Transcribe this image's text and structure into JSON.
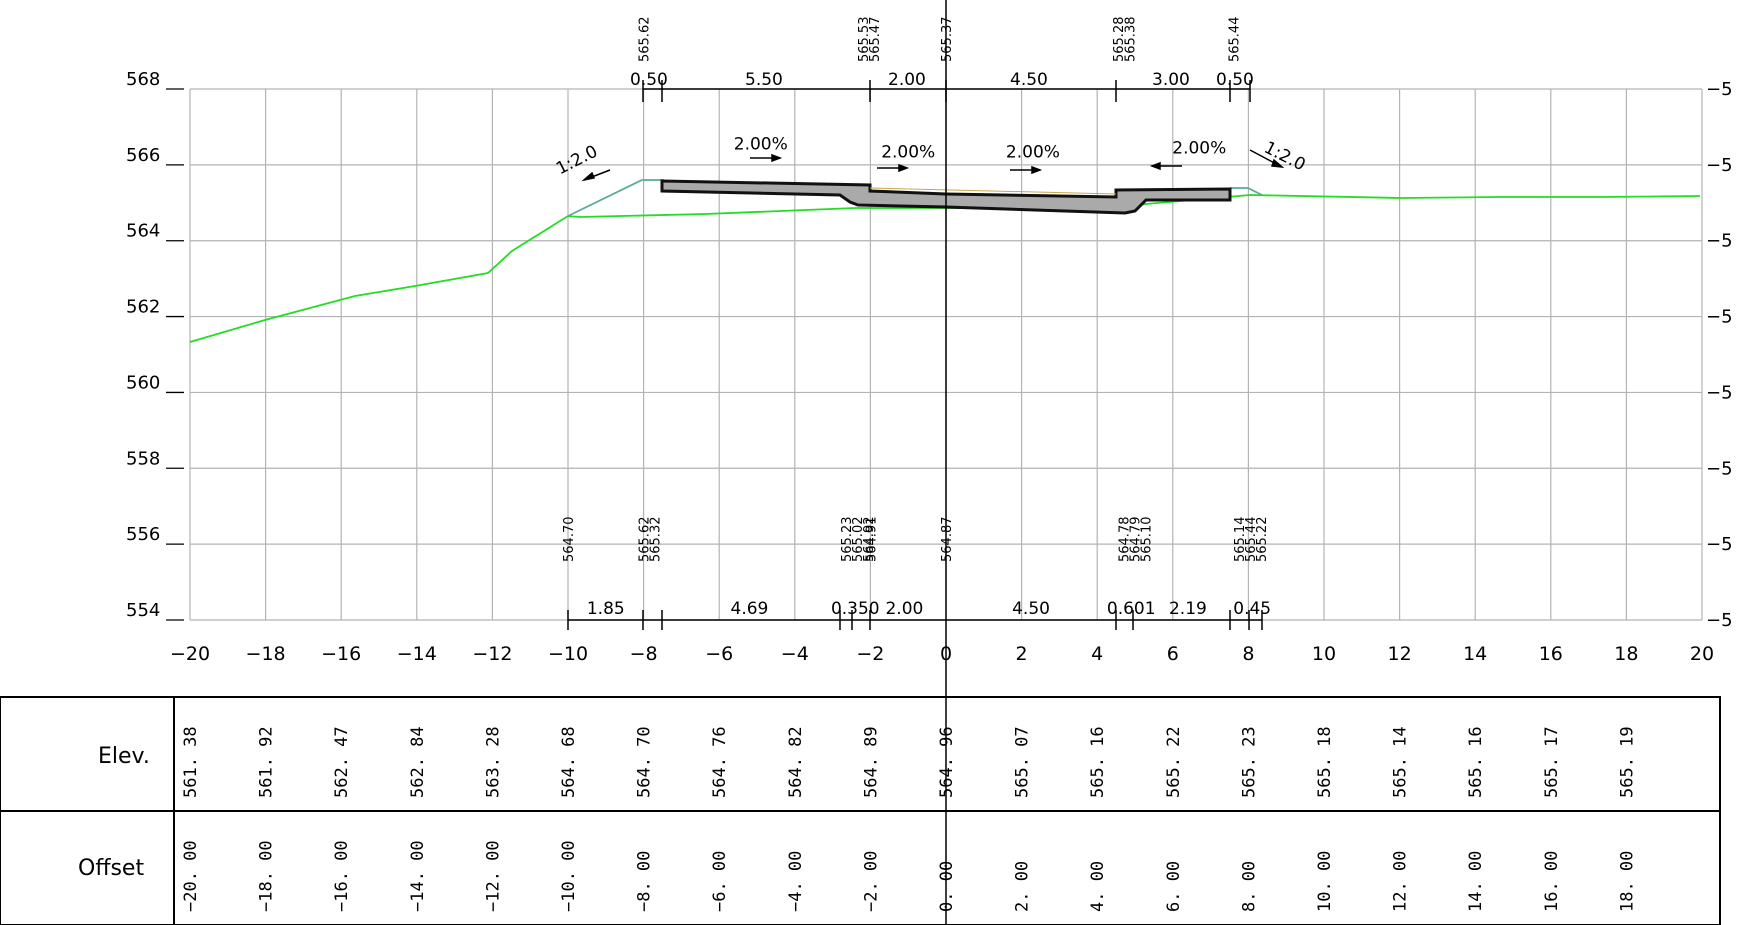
{
  "axes": {
    "x_ticks": [
      "−20",
      "−18",
      "−16",
      "−14",
      "−12",
      "−10",
      "−8",
      "−6",
      "−4",
      "−2",
      "0",
      "2",
      "4",
      "6",
      "8",
      "10",
      "12",
      "14",
      "16",
      "18",
      "20"
    ],
    "y_ticks": [
      "554",
      "556",
      "558",
      "560",
      "562",
      "564",
      "566",
      "568"
    ],
    "right_tick_label": "−5"
  },
  "top_dimensions": [
    "0.50",
    "5.50",
    "2.00",
    "4.50",
    "3.00",
    "0.50"
  ],
  "top_elevations": [
    {
      "x": -8.0,
      "text": "565.62"
    },
    {
      "x": -2.2,
      "text": "565.53"
    },
    {
      "x": -1.9,
      "text": "565.47"
    },
    {
      "x": 0.0,
      "text": "565.37"
    },
    {
      "x": 4.55,
      "text": "565.28"
    },
    {
      "x": 4.85,
      "text": "565.38"
    },
    {
      "x": 7.6,
      "text": "565.44"
    }
  ],
  "slopes": [
    {
      "x": -9.7,
      "y": 566.0,
      "text": "1:2.0",
      "rot": -27
    },
    {
      "x": -4.9,
      "y": 566.4,
      "text": "2.00%",
      "rot": 0
    },
    {
      "x": -1.0,
      "y": 566.2,
      "text": "2.00%",
      "rot": 0
    },
    {
      "x": 2.3,
      "y": 566.2,
      "text": "2.00%",
      "rot": 0
    },
    {
      "x": 6.7,
      "y": 566.3,
      "text": "2.00%",
      "rot": 0
    },
    {
      "x": 8.9,
      "y": 566.1,
      "text": "1:2.0",
      "rot": 27
    }
  ],
  "bottom_elevations": [
    {
      "x": -10.0,
      "texts": [
        "564.70"
      ]
    },
    {
      "x": -8.0,
      "texts": [
        "565.62",
        "565.32"
      ]
    },
    {
      "x": -2.65,
      "texts": [
        "565.23",
        "565.02",
        "564.92"
      ]
    },
    {
      "x": -2.0,
      "texts": [
        "564.91"
      ]
    },
    {
      "x": 0.0,
      "texts": [
        "564.87"
      ]
    },
    {
      "x": 4.7,
      "texts": [
        "564.78",
        "564.79",
        "565.10"
      ]
    },
    {
      "x": 7.75,
      "texts": [
        "565.14",
        "565.44",
        "565.22"
      ]
    }
  ],
  "bottom_dimensions": [
    {
      "x": -9.0,
      "text": "1.85"
    },
    {
      "x": -5.2,
      "text": "4.69"
    },
    {
      "x": -2.4,
      "text": "0.350"
    },
    {
      "x": -1.1,
      "text": "2.00"
    },
    {
      "x": 2.25,
      "text": "4.50"
    },
    {
      "x": 4.9,
      "text": "0.601"
    },
    {
      "x": 6.4,
      "text": "2.19"
    },
    {
      "x": 8.1,
      "text": "0.45"
    }
  ],
  "table": {
    "elev_label": "Elev.",
    "offset_label": "Offset",
    "elev_values": [
      "561. 38",
      "561. 92",
      "562. 47",
      "562. 84",
      "563. 28",
      "564. 68",
      "564. 70",
      "564. 76",
      "564. 82",
      "564. 89",
      "564. 96",
      "565. 07",
      "565. 16",
      "565. 22",
      "565. 23",
      "565. 18",
      "565. 14",
      "565. 16",
      "565. 17",
      "565. 19"
    ],
    "offset_values": [
      "−20. 00",
      "−18. 00",
      "−16. 00",
      "−14. 00",
      "−12. 00",
      "−10. 00",
      "−8. 00",
      "−6. 00",
      "−4. 00",
      "−2. 00",
      "0. 00",
      "2. 00",
      "4. 00",
      "6. 00",
      "8. 00",
      "10. 00",
      "12. 00",
      "14. 00",
      "16. 00",
      "18. 00"
    ]
  },
  "colors": {
    "grid": "#b3b3b3",
    "ground_line": "#22dd22",
    "design_slope": "#5aaa9a",
    "pavement_fill": "#aaaaaa",
    "pavement_edge": "#111111"
  }
}
